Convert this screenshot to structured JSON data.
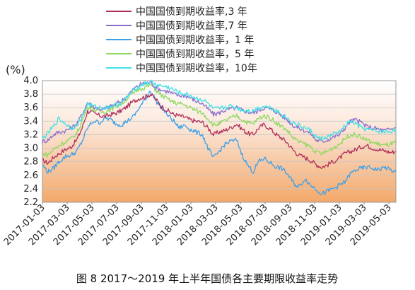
{
  "chart_data": {
    "type": "line",
    "ylabel": "(%)",
    "ylim": [
      2.2,
      4.0
    ],
    "yticks": [
      "4.0",
      "3.8",
      "3.6",
      "3.4",
      "3.2",
      "3.0",
      "2.8",
      "2.6",
      "2.4",
      "2.2"
    ],
    "xlim": [
      2017.0,
      2019.5833
    ],
    "xticks": [
      "2017-01-03",
      "2017-03-03",
      "2017-05-03",
      "2017-07-03",
      "2017-09-03",
      "2017-11-03",
      "2018-01-03",
      "2018-03-03",
      "2018-05-03",
      "2018-07-03",
      "2018-09-03",
      "2018-11-03",
      "2019-01-03",
      "2019-03-03",
      "2019-05-03"
    ],
    "caption": "图 8 2017～2019 年上半年国债各主要期限收益率走势",
    "legend_position": "top-center",
    "series": [
      {
        "name": "中国国债到期收益率,3 年",
        "color": "#b0305a",
        "x": [
          2017.0,
          2017.04,
          2017.08,
          2017.12,
          2017.17,
          2017.21,
          2017.25,
          2017.29,
          2017.33,
          2017.37,
          2017.42,
          2017.46,
          2017.5,
          2017.54,
          2017.58,
          2017.62,
          2017.67,
          2017.71,
          2017.75,
          2017.79,
          2017.83,
          2017.87,
          2017.92,
          2017.96,
          2018.0,
          2018.04,
          2018.08,
          2018.12,
          2018.17,
          2018.21,
          2018.25,
          2018.29,
          2018.33,
          2018.37,
          2018.42,
          2018.46,
          2018.5,
          2018.54,
          2018.58,
          2018.62,
          2018.67,
          2018.71,
          2018.75,
          2018.79,
          2018.83,
          2018.87,
          2018.92,
          2018.96,
          2019.0,
          2019.04,
          2019.08,
          2019.12,
          2019.17,
          2019.21,
          2019.25,
          2019.29,
          2019.33,
          2019.37,
          2019.42,
          2019.46,
          2019.5,
          2019.54,
          2019.58
        ],
        "values": [
          2.82,
          2.78,
          2.86,
          2.92,
          2.98,
          3.02,
          3.12,
          3.3,
          3.55,
          3.52,
          3.48,
          3.47,
          3.5,
          3.52,
          3.56,
          3.62,
          3.7,
          3.74,
          3.76,
          3.8,
          3.72,
          3.62,
          3.55,
          3.5,
          3.48,
          3.46,
          3.42,
          3.4,
          3.38,
          3.3,
          3.2,
          3.24,
          3.26,
          3.3,
          3.36,
          3.28,
          3.22,
          3.2,
          3.3,
          3.35,
          3.28,
          3.2,
          3.15,
          3.08,
          2.98,
          2.9,
          2.86,
          2.82,
          2.76,
          2.72,
          2.75,
          2.8,
          2.85,
          2.92,
          2.95,
          2.98,
          3.02,
          3.04,
          3.0,
          2.98,
          2.96,
          2.94,
          2.95
        ]
      },
      {
        "name": "中国国债到期收益率,7 年",
        "color": "#8a6ccf",
        "x": [
          2017.0,
          2017.04,
          2017.08,
          2017.12,
          2017.17,
          2017.21,
          2017.25,
          2017.29,
          2017.33,
          2017.37,
          2017.42,
          2017.46,
          2017.5,
          2017.54,
          2017.58,
          2017.62,
          2017.67,
          2017.71,
          2017.75,
          2017.79,
          2017.83,
          2017.87,
          2017.92,
          2017.96,
          2018.0,
          2018.04,
          2018.08,
          2018.12,
          2018.17,
          2018.21,
          2018.25,
          2018.29,
          2018.33,
          2018.37,
          2018.42,
          2018.46,
          2018.5,
          2018.54,
          2018.58,
          2018.62,
          2018.67,
          2018.71,
          2018.75,
          2018.79,
          2018.83,
          2018.87,
          2018.92,
          2018.96,
          2019.0,
          2019.04,
          2019.08,
          2019.12,
          2019.17,
          2019.21,
          2019.25,
          2019.29,
          2019.33,
          2019.37,
          2019.42,
          2019.46,
          2019.5,
          2019.54,
          2019.58
        ],
        "values": [
          3.1,
          3.12,
          3.2,
          3.24,
          3.26,
          3.3,
          3.36,
          3.5,
          3.68,
          3.62,
          3.58,
          3.58,
          3.62,
          3.66,
          3.7,
          3.78,
          3.88,
          3.94,
          3.96,
          3.98,
          3.9,
          3.86,
          3.84,
          3.8,
          3.78,
          3.78,
          3.75,
          3.7,
          3.66,
          3.58,
          3.5,
          3.52,
          3.56,
          3.58,
          3.6,
          3.56,
          3.54,
          3.52,
          3.56,
          3.6,
          3.58,
          3.54,
          3.48,
          3.42,
          3.34,
          3.3,
          3.26,
          3.22,
          3.12,
          3.1,
          3.12,
          3.16,
          3.2,
          3.3,
          3.4,
          3.42,
          3.38,
          3.32,
          3.3,
          3.28,
          3.26,
          3.28,
          3.3
        ]
      },
      {
        "name": "中国国债到期收益率，1 年",
        "color": "#3da0e8",
        "x": [
          2017.0,
          2017.04,
          2017.08,
          2017.12,
          2017.17,
          2017.21,
          2017.25,
          2017.29,
          2017.33,
          2017.37,
          2017.42,
          2017.46,
          2017.5,
          2017.54,
          2017.58,
          2017.62,
          2017.67,
          2017.71,
          2017.75,
          2017.79,
          2017.83,
          2017.87,
          2017.92,
          2017.96,
          2018.0,
          2018.04,
          2018.08,
          2018.12,
          2018.17,
          2018.21,
          2018.25,
          2018.29,
          2018.33,
          2018.37,
          2018.42,
          2018.46,
          2018.5,
          2018.54,
          2018.58,
          2018.62,
          2018.67,
          2018.71,
          2018.75,
          2018.79,
          2018.83,
          2018.87,
          2018.92,
          2018.96,
          2019.0,
          2019.04,
          2019.08,
          2019.12,
          2019.17,
          2019.21,
          2019.25,
          2019.29,
          2019.33,
          2019.37,
          2019.42,
          2019.46,
          2019.5,
          2019.54,
          2019.58
        ],
        "values": [
          2.75,
          2.65,
          2.7,
          2.8,
          2.88,
          2.9,
          2.95,
          3.1,
          3.3,
          3.4,
          3.38,
          3.45,
          3.42,
          3.36,
          3.35,
          3.4,
          3.48,
          3.6,
          3.72,
          3.86,
          3.7,
          3.6,
          3.48,
          3.4,
          3.3,
          3.34,
          3.28,
          3.24,
          3.2,
          3.0,
          2.85,
          2.95,
          3.05,
          3.1,
          3.12,
          2.9,
          2.75,
          2.65,
          2.8,
          2.85,
          2.78,
          2.72,
          2.7,
          2.62,
          2.5,
          2.42,
          2.55,
          2.45,
          2.4,
          2.32,
          2.36,
          2.4,
          2.45,
          2.5,
          2.62,
          2.68,
          2.7,
          2.72,
          2.7,
          2.68,
          2.72,
          2.68,
          2.65
        ]
      },
      {
        "name": "中国国债到期收益率，5 年",
        "color": "#90d860",
        "x": [
          2017.0,
          2017.04,
          2017.08,
          2017.12,
          2017.17,
          2017.21,
          2017.25,
          2017.29,
          2017.33,
          2017.37,
          2017.42,
          2017.46,
          2017.5,
          2017.54,
          2017.58,
          2017.62,
          2017.67,
          2017.71,
          2017.75,
          2017.79,
          2017.83,
          2017.87,
          2017.92,
          2017.96,
          2018.0,
          2018.04,
          2018.08,
          2018.12,
          2018.17,
          2018.21,
          2018.25,
          2018.29,
          2018.33,
          2018.37,
          2018.42,
          2018.46,
          2018.5,
          2018.54,
          2018.58,
          2018.62,
          2018.67,
          2018.71,
          2018.75,
          2018.79,
          2018.83,
          2018.87,
          2018.92,
          2018.96,
          2019.0,
          2019.04,
          2019.08,
          2019.12,
          2019.17,
          2019.21,
          2019.25,
          2019.29,
          2019.33,
          2019.37,
          2019.42,
          2019.46,
          2019.5,
          2019.54,
          2019.58
        ],
        "values": [
          2.92,
          2.9,
          2.98,
          3.04,
          3.1,
          3.14,
          3.22,
          3.4,
          3.62,
          3.58,
          3.54,
          3.54,
          3.58,
          3.62,
          3.66,
          3.74,
          3.82,
          3.88,
          3.9,
          3.94,
          3.86,
          3.78,
          3.72,
          3.68,
          3.66,
          3.64,
          3.6,
          3.56,
          3.52,
          3.44,
          3.34,
          3.36,
          3.4,
          3.44,
          3.48,
          3.42,
          3.38,
          3.36,
          3.44,
          3.48,
          3.44,
          3.38,
          3.32,
          3.26,
          3.16,
          3.1,
          3.06,
          3.02,
          2.94,
          2.92,
          2.95,
          3.0,
          3.06,
          3.14,
          3.2,
          3.2,
          3.16,
          3.12,
          3.08,
          3.06,
          3.04,
          3.06,
          3.08
        ]
      },
      {
        "name": "中国国债到期收益率，10年",
        "color": "#3fe0e8",
        "x": [
          2017.0,
          2017.04,
          2017.08,
          2017.12,
          2017.17,
          2017.21,
          2017.25,
          2017.29,
          2017.33,
          2017.37,
          2017.42,
          2017.46,
          2017.5,
          2017.54,
          2017.58,
          2017.62,
          2017.67,
          2017.71,
          2017.75,
          2017.79,
          2017.83,
          2017.87,
          2017.92,
          2017.96,
          2018.0,
          2018.04,
          2018.08,
          2018.12,
          2018.17,
          2018.21,
          2018.25,
          2018.29,
          2018.33,
          2018.37,
          2018.42,
          2018.46,
          2018.5,
          2018.54,
          2018.58,
          2018.62,
          2018.67,
          2018.71,
          2018.75,
          2018.79,
          2018.83,
          2018.87,
          2018.92,
          2018.96,
          2019.0,
          2019.04,
          2019.08,
          2019.12,
          2019.17,
          2019.21,
          2019.25,
          2019.29,
          2019.33,
          2019.37,
          2019.42,
          2019.46,
          2019.5,
          2019.54,
          2019.58
        ],
        "values": [
          3.14,
          3.22,
          3.32,
          3.44,
          3.36,
          3.3,
          3.34,
          3.46,
          3.66,
          3.62,
          3.6,
          3.6,
          3.62,
          3.64,
          3.68,
          3.76,
          3.86,
          3.92,
          3.96,
          3.98,
          3.94,
          3.92,
          3.9,
          3.86,
          3.82,
          3.8,
          3.78,
          3.74,
          3.72,
          3.66,
          3.58,
          3.58,
          3.6,
          3.62,
          3.6,
          3.56,
          3.56,
          3.55,
          3.6,
          3.62,
          3.6,
          3.56,
          3.5,
          3.44,
          3.38,
          3.34,
          3.3,
          3.26,
          3.16,
          3.14,
          3.16,
          3.2,
          3.24,
          3.32,
          3.4,
          3.36,
          3.3,
          3.28,
          3.26,
          3.25,
          3.24,
          3.25,
          3.27
        ]
      }
    ]
  }
}
